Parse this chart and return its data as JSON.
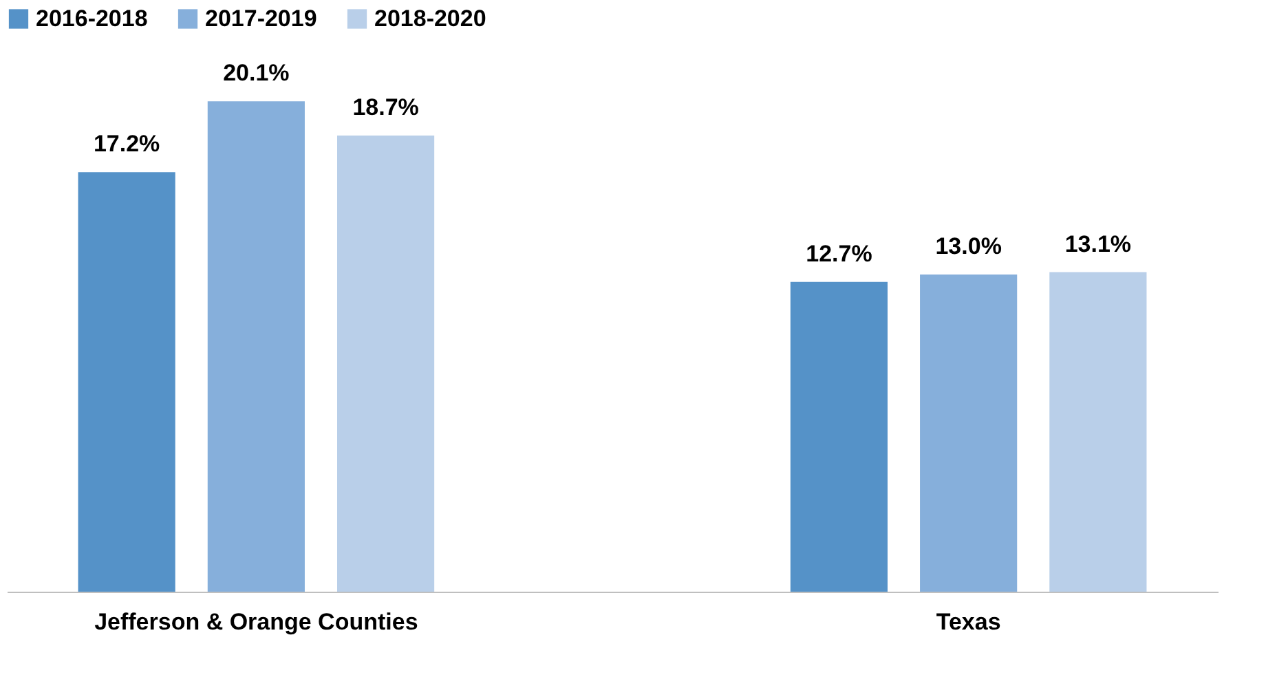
{
  "chart_data": {
    "type": "bar",
    "categories": [
      "Jefferson & Orange Counties",
      "Texas"
    ],
    "series": [
      {
        "name": "2016-2018",
        "color": "#5592c8",
        "values": [
          17.2,
          12.7
        ],
        "value_labels": [
          "17.2%",
          "12.7%"
        ]
      },
      {
        "name": "2017-2019",
        "color": "#86afdb",
        "values": [
          20.1,
          13.0
        ],
        "value_labels": [
          "20.1%",
          "13.0%"
        ]
      },
      {
        "name": "2018-2020",
        "color": "#b9cfe9",
        "values": [
          18.7,
          13.1
        ],
        "value_labels": [
          "18.7%",
          "13.1%"
        ]
      }
    ],
    "legend": "top",
    "grid": false,
    "tick_labels": "x"
  }
}
